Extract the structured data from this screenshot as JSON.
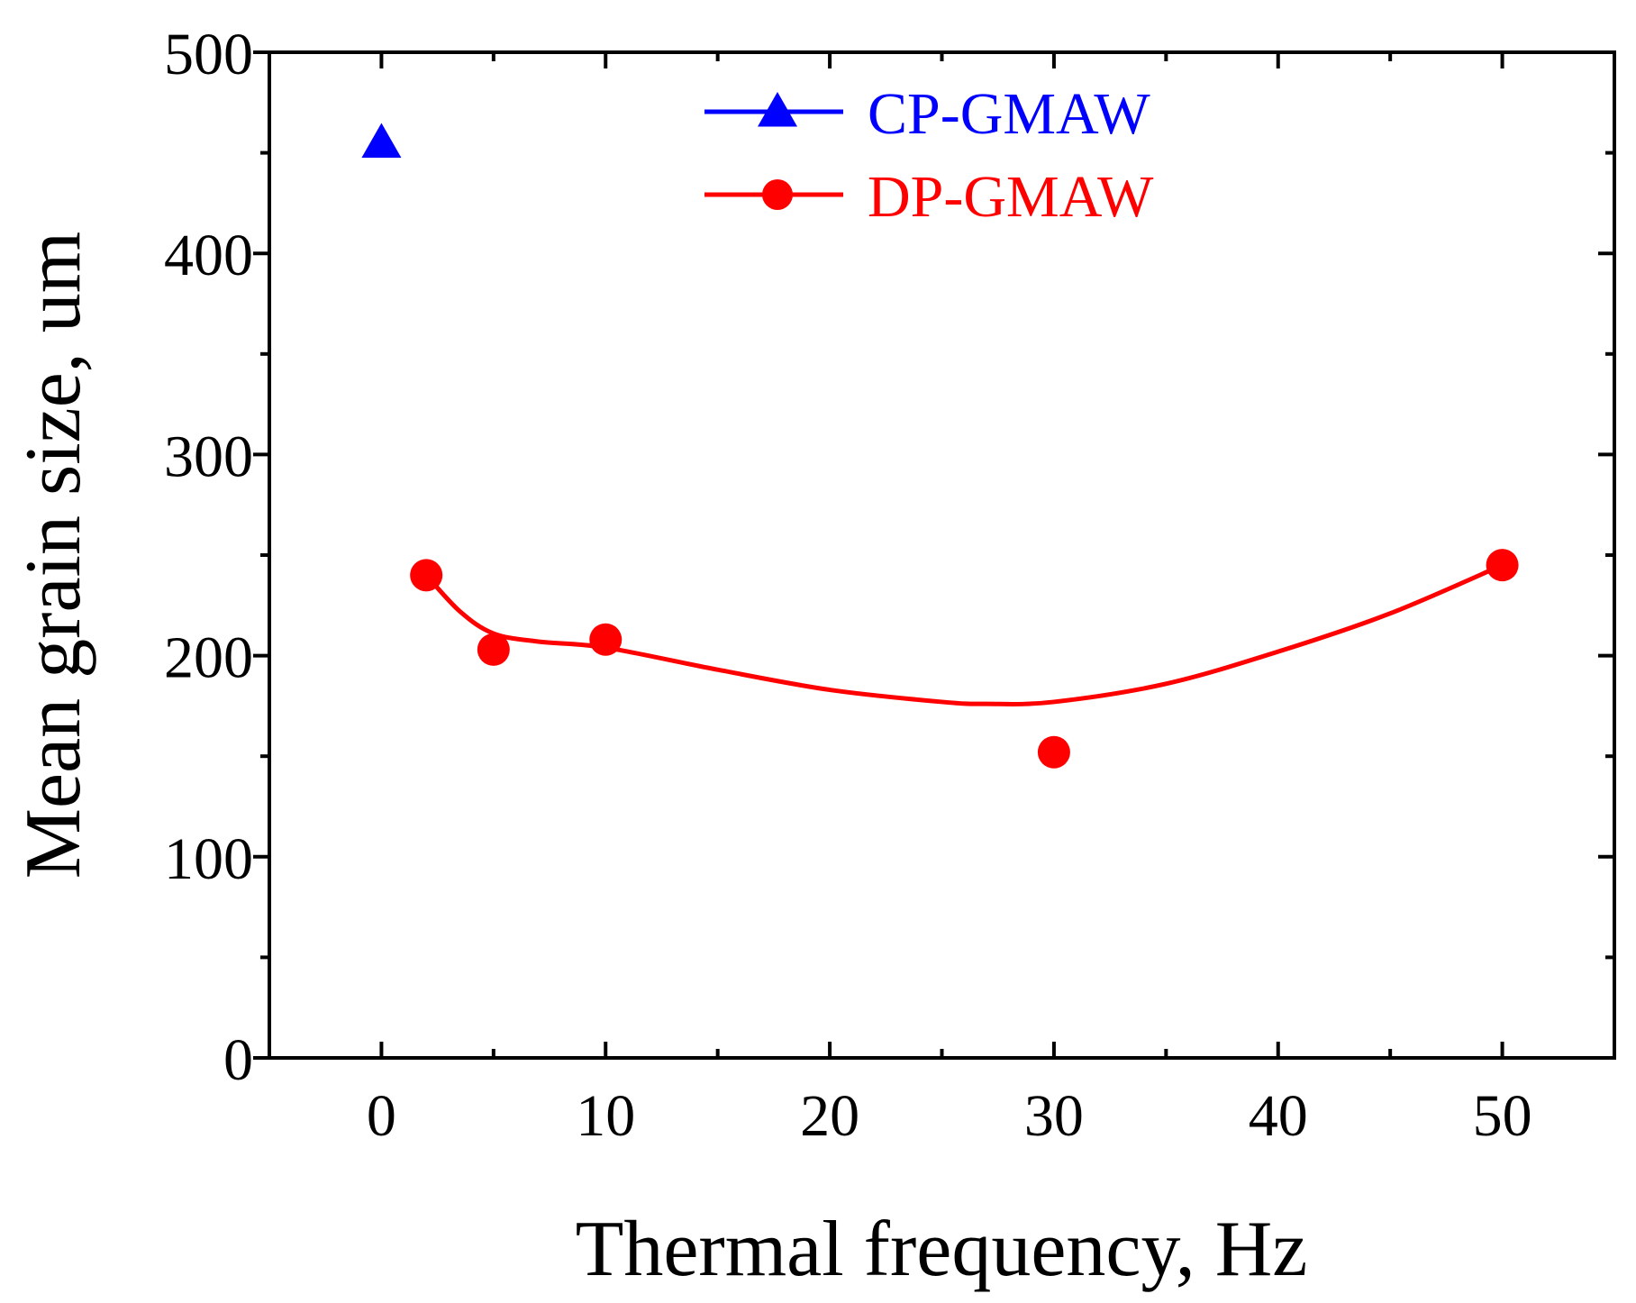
{
  "chart_data": {
    "type": "scatter",
    "title": "",
    "xlabel": "Thermal frequency, Hz",
    "ylabel": "Mean grain size, um",
    "xlim": [
      -5,
      55
    ],
    "ylim": [
      0,
      500
    ],
    "x_ticks": [
      0,
      10,
      20,
      30,
      40,
      50
    ],
    "x_minor_ticks": [
      -5,
      5,
      15,
      25,
      35,
      45,
      55
    ],
    "y_ticks": [
      0,
      100,
      200,
      300,
      400,
      500
    ],
    "y_minor_ticks": [
      50,
      150,
      250,
      350,
      450
    ],
    "legend_position": "top-center",
    "series": [
      {
        "name": "CP-GMAW",
        "color": "#0000ff",
        "marker": "triangle",
        "points": [
          {
            "x": 0,
            "y": 455
          }
        ]
      },
      {
        "name": "DP-GMAW",
        "color": "#ff0000",
        "marker": "circle",
        "points": [
          {
            "x": 2,
            "y": 240
          },
          {
            "x": 5,
            "y": 203
          },
          {
            "x": 10,
            "y": 208
          },
          {
            "x": 30,
            "y": 152
          },
          {
            "x": 50,
            "y": 245
          }
        ],
        "fit_curve": [
          {
            "x": 2,
            "y": 240
          },
          {
            "x": 3.5,
            "y": 222
          },
          {
            "x": 5,
            "y": 211
          },
          {
            "x": 7,
            "y": 207
          },
          {
            "x": 10,
            "y": 204
          },
          {
            "x": 15,
            "y": 193
          },
          {
            "x": 20,
            "y": 183
          },
          {
            "x": 25,
            "y": 177
          },
          {
            "x": 27,
            "y": 176
          },
          {
            "x": 30,
            "y": 177
          },
          {
            "x": 35,
            "y": 186
          },
          {
            "x": 40,
            "y": 202
          },
          {
            "x": 45,
            "y": 221
          },
          {
            "x": 50,
            "y": 245
          }
        ]
      }
    ]
  }
}
